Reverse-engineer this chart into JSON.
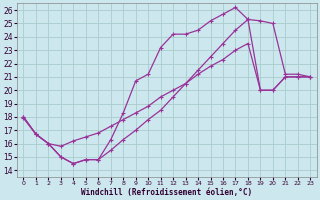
{
  "xlabel": "Windchill (Refroidissement éolien,°C)",
  "bg_color": "#cce8ee",
  "grid_color": "#aacccc",
  "line_color": "#993399",
  "xlim_min": -0.5,
  "xlim_max": 23.5,
  "ylim_min": 13.5,
  "ylim_max": 26.5,
  "xticks": [
    0,
    1,
    2,
    3,
    4,
    5,
    6,
    7,
    8,
    9,
    10,
    11,
    12,
    13,
    14,
    15,
    16,
    17,
    18,
    19,
    20,
    21,
    22,
    23
  ],
  "yticks": [
    14,
    15,
    16,
    17,
    18,
    19,
    20,
    21,
    22,
    23,
    24,
    25,
    26
  ],
  "line1_x": [
    0,
    1,
    2,
    3,
    4,
    5,
    6,
    7,
    8,
    9,
    10,
    11,
    12,
    13,
    14,
    15,
    16,
    17,
    18,
    19,
    20,
    21,
    22,
    23
  ],
  "line1_y": [
    18.0,
    16.7,
    16.0,
    15.0,
    14.5,
    14.8,
    14.8,
    16.3,
    18.3,
    20.7,
    21.2,
    23.2,
    24.2,
    24.2,
    24.5,
    25.2,
    25.7,
    26.2,
    25.3,
    25.2,
    25.0,
    21.2,
    21.2,
    21.0
  ],
  "line2_x": [
    0,
    1,
    2,
    3,
    4,
    5,
    6,
    7,
    8,
    9,
    10,
    11,
    12,
    13,
    14,
    15,
    16,
    17,
    18,
    19,
    20,
    21,
    22,
    23
  ],
  "line2_y": [
    17.9,
    16.7,
    16.0,
    15.8,
    16.2,
    16.5,
    16.8,
    17.3,
    17.8,
    18.3,
    18.8,
    19.5,
    20.0,
    20.5,
    21.2,
    21.8,
    22.3,
    23.0,
    23.5,
    20.0,
    20.0,
    21.0,
    21.0,
    21.0
  ],
  "line3_x": [
    0,
    1,
    2,
    3,
    4,
    5,
    6,
    7,
    8,
    9,
    10,
    11,
    12,
    13,
    14,
    15,
    16,
    17,
    18,
    19,
    20,
    21,
    22,
    23
  ],
  "line3_y": [
    18.0,
    16.7,
    16.0,
    15.0,
    14.5,
    14.8,
    14.8,
    15.5,
    16.3,
    17.0,
    17.8,
    18.5,
    19.5,
    20.5,
    21.5,
    22.5,
    23.5,
    24.5,
    25.3,
    20.0,
    20.0,
    21.0,
    21.0,
    21.0
  ]
}
